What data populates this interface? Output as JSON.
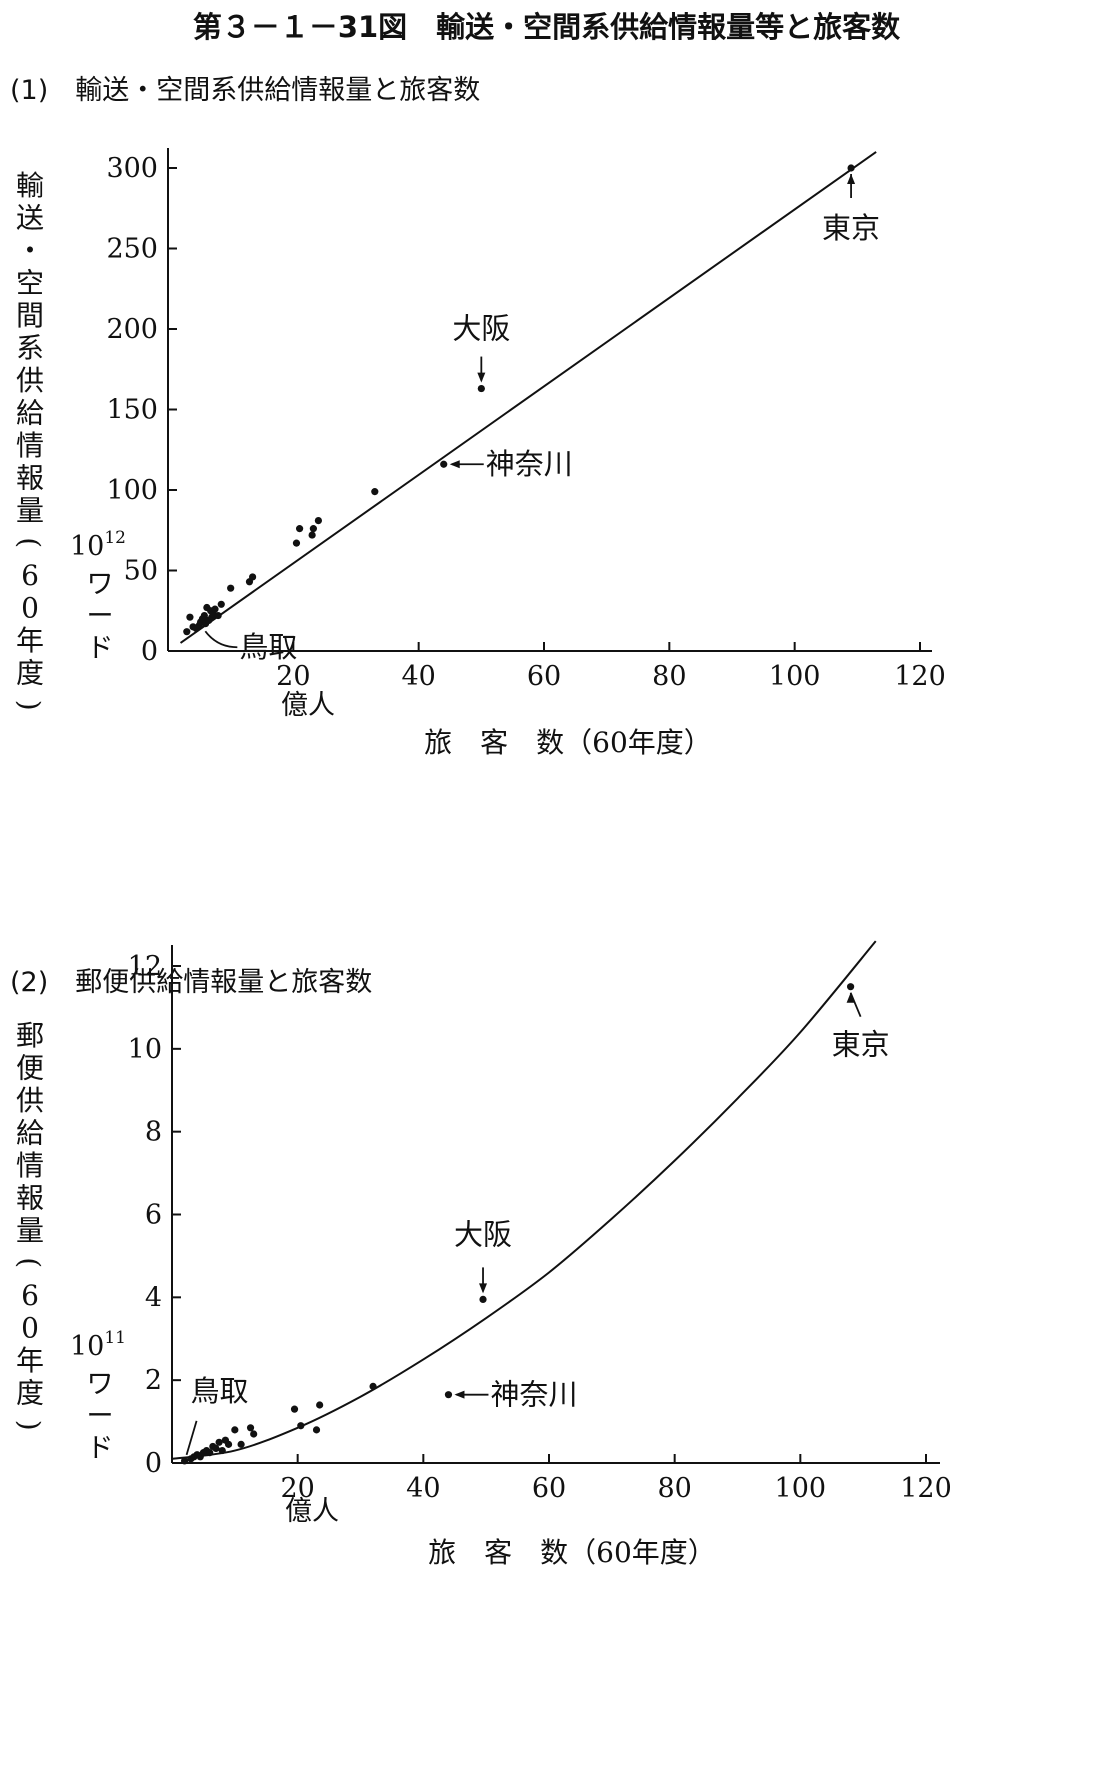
{
  "title": "第３－１－31図　輸送・空間系供給情報量等と旅客数",
  "chart_data": [
    {
      "type": "scatter",
      "subtitle": "(1)　輸送・空間系供給情報量と旅客数",
      "ylabel": "輸送・空間系供給情報量(60年度)",
      "yunit": "10¹² ワード",
      "xlabel": "旅　客　数（60年度）",
      "xunit": "億人",
      "xlim": [
        0,
        120
      ],
      "ylim": [
        0,
        300
      ],
      "xticks": [
        20,
        40,
        60,
        80,
        100,
        120
      ],
      "yticks": [
        0,
        50,
        100,
        150,
        200,
        250,
        300
      ],
      "points": [
        {
          "x": 3,
          "y": 12
        },
        {
          "x": 3.5,
          "y": 21
        },
        {
          "x": 4,
          "y": 15
        },
        {
          "x": 4.5,
          "y": 14
        },
        {
          "x": 5,
          "y": 16
        },
        {
          "x": 5.2,
          "y": 18
        },
        {
          "x": 5.5,
          "y": 20
        },
        {
          "x": 5.8,
          "y": 22
        },
        {
          "x": 6,
          "y": 17
        },
        {
          "x": 6.2,
          "y": 27
        },
        {
          "x": 6.5,
          "y": 19
        },
        {
          "x": 6.8,
          "y": 25
        },
        {
          "x": 7,
          "y": 21
        },
        {
          "x": 7.2,
          "y": 23
        },
        {
          "x": 7.5,
          "y": 26
        },
        {
          "x": 8,
          "y": 22
        },
        {
          "x": 8.5,
          "y": 29
        },
        {
          "x": 10,
          "y": 39
        },
        {
          "x": 13,
          "y": 43
        },
        {
          "x": 13.5,
          "y": 46
        },
        {
          "x": 20.5,
          "y": 67
        },
        {
          "x": 21,
          "y": 76
        },
        {
          "x": 23,
          "y": 72
        },
        {
          "x": 23.2,
          "y": 76
        },
        {
          "x": 24,
          "y": 81
        },
        {
          "x": 33,
          "y": 99
        },
        {
          "x": 44,
          "y": 116
        },
        {
          "x": 50,
          "y": 163
        },
        {
          "x": 109,
          "y": 300
        }
      ],
      "fit_line": [
        {
          "x": 2,
          "y": 5
        },
        {
          "x": 113,
          "y": 310
        }
      ],
      "annotations": [
        {
          "label": "東京",
          "x": 109,
          "y": 300
        },
        {
          "label": "大阪",
          "x": 50,
          "y": 163
        },
        {
          "label": "神奈川",
          "x": 44,
          "y": 116
        },
        {
          "label": "鳥取",
          "x": 5,
          "y": 16
        }
      ]
    },
    {
      "type": "scatter",
      "subtitle": "(2)　郵便供給情報量と旅客数",
      "ylabel": "郵便供給情報量(60年度)",
      "yunit": "10¹¹ ワード",
      "xlabel": "旅　客　数（60年度）",
      "xunit": "億人",
      "xlim": [
        0,
        120
      ],
      "ylim": [
        0,
        12
      ],
      "xticks": [
        20,
        40,
        60,
        80,
        100,
        120
      ],
      "yticks": [
        0,
        2,
        4,
        6,
        8,
        10,
        12
      ],
      "points": [
        {
          "x": 2,
          "y": 0.05
        },
        {
          "x": 3,
          "y": 0.1
        },
        {
          "x": 3.5,
          "y": 0.15
        },
        {
          "x": 4,
          "y": 0.2
        },
        {
          "x": 4.5,
          "y": 0.15
        },
        {
          "x": 5,
          "y": 0.25
        },
        {
          "x": 5.5,
          "y": 0.3
        },
        {
          "x": 6,
          "y": 0.25
        },
        {
          "x": 6.5,
          "y": 0.4
        },
        {
          "x": 7,
          "y": 0.35
        },
        {
          "x": 7.5,
          "y": 0.5
        },
        {
          "x": 8,
          "y": 0.3
        },
        {
          "x": 8.5,
          "y": 0.55
        },
        {
          "x": 9,
          "y": 0.45
        },
        {
          "x": 10,
          "y": 0.8
        },
        {
          "x": 11,
          "y": 0.45
        },
        {
          "x": 12.5,
          "y": 0.85
        },
        {
          "x": 13,
          "y": 0.7
        },
        {
          "x": 19.5,
          "y": 1.3
        },
        {
          "x": 20.5,
          "y": 0.9
        },
        {
          "x": 23,
          "y": 0.8
        },
        {
          "x": 23.5,
          "y": 1.4
        },
        {
          "x": 32,
          "y": 1.85
        },
        {
          "x": 44,
          "y": 1.65
        },
        {
          "x": 49.5,
          "y": 3.95
        },
        {
          "x": 108,
          "y": 11.5
        }
      ],
      "fit_curve": [
        {
          "x": 0,
          "y": 0.1
        },
        {
          "x": 10,
          "y": 0.3
        },
        {
          "x": 20,
          "y": 0.85
        },
        {
          "x": 30,
          "y": 1.6
        },
        {
          "x": 40,
          "y": 2.5
        },
        {
          "x": 50,
          "y": 3.5
        },
        {
          "x": 60,
          "y": 4.6
        },
        {
          "x": 70,
          "y": 5.9
        },
        {
          "x": 80,
          "y": 7.3
        },
        {
          "x": 90,
          "y": 8.8
        },
        {
          "x": 100,
          "y": 10.4
        },
        {
          "x": 112,
          "y": 12.6
        }
      ],
      "annotations": [
        {
          "label": "東京",
          "x": 108,
          "y": 11.5
        },
        {
          "label": "大阪",
          "x": 49.5,
          "y": 3.95
        },
        {
          "label": "神奈川",
          "x": 44,
          "y": 1.65
        },
        {
          "label": "鳥取",
          "x": 2,
          "y": 0.05
        }
      ]
    }
  ]
}
